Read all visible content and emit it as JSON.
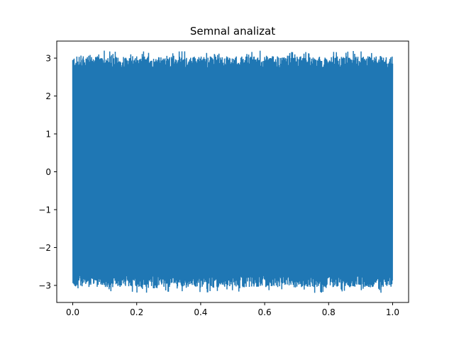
{
  "chart_data": {
    "type": "line",
    "title": "Semnal analizat",
    "xlabel": "",
    "ylabel": "",
    "xlim": [
      -0.05,
      1.05
    ],
    "ylim": [
      -3.45,
      3.45
    ],
    "x_ticks": [
      0.0,
      0.2,
      0.4,
      0.6,
      0.8,
      1.0
    ],
    "x_tick_labels": [
      "0.0",
      "0.2",
      "0.4",
      "0.6",
      "0.8",
      "1.0"
    ],
    "y_ticks": [
      -3,
      -2,
      -1,
      0,
      1,
      2,
      3
    ],
    "y_tick_labels": [
      "−3",
      "−2",
      "−1",
      "0",
      "1",
      "2",
      "3"
    ],
    "grid": false,
    "legend": "none",
    "series": [
      {
        "color": "#1f77b4",
        "x_range": [
          0.0,
          1.0
        ],
        "envelope_max": 3.2,
        "envelope_min": -3.2,
        "typical_peak": 2.9
      }
    ]
  }
}
